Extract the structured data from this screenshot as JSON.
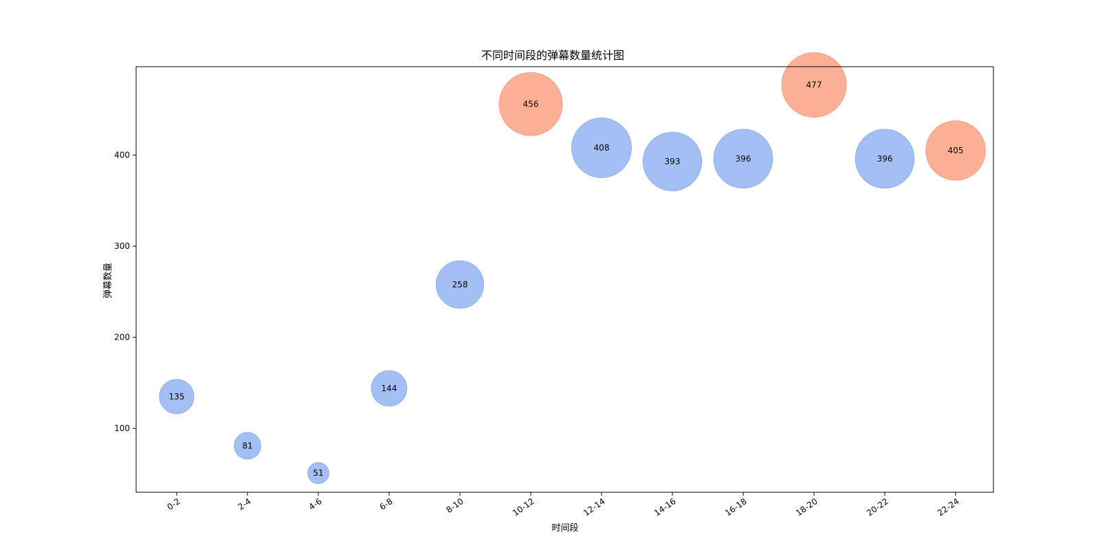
{
  "chart_data": {
    "type": "scatter",
    "title": "不同时间段的弹幕数量统计图",
    "xlabel": "时间段",
    "ylabel": "弹幕数量",
    "categories": [
      "0-2",
      "2-4",
      "4-6",
      "6-8",
      "8-10",
      "10-12",
      "12-14",
      "14-16",
      "16-18",
      "18-20",
      "20-22",
      "22-24"
    ],
    "values": [
      135,
      81,
      51,
      144,
      258,
      456,
      408,
      393,
      396,
      477,
      396,
      405
    ],
    "highlight": [
      false,
      false,
      false,
      false,
      false,
      true,
      false,
      false,
      false,
      true,
      false,
      true
    ],
    "ylim": [
      30,
      497
    ],
    "yticks": [
      100,
      200,
      300,
      400
    ],
    "grid": false,
    "bubble_size_encodes": "value",
    "colors": {
      "normal_fill": "#a3bff4",
      "normal_stroke": "#8fb0ee",
      "highlight_fill": "#fcb095",
      "highlight_stroke": "#f9a184",
      "axis": "#000000"
    }
  }
}
